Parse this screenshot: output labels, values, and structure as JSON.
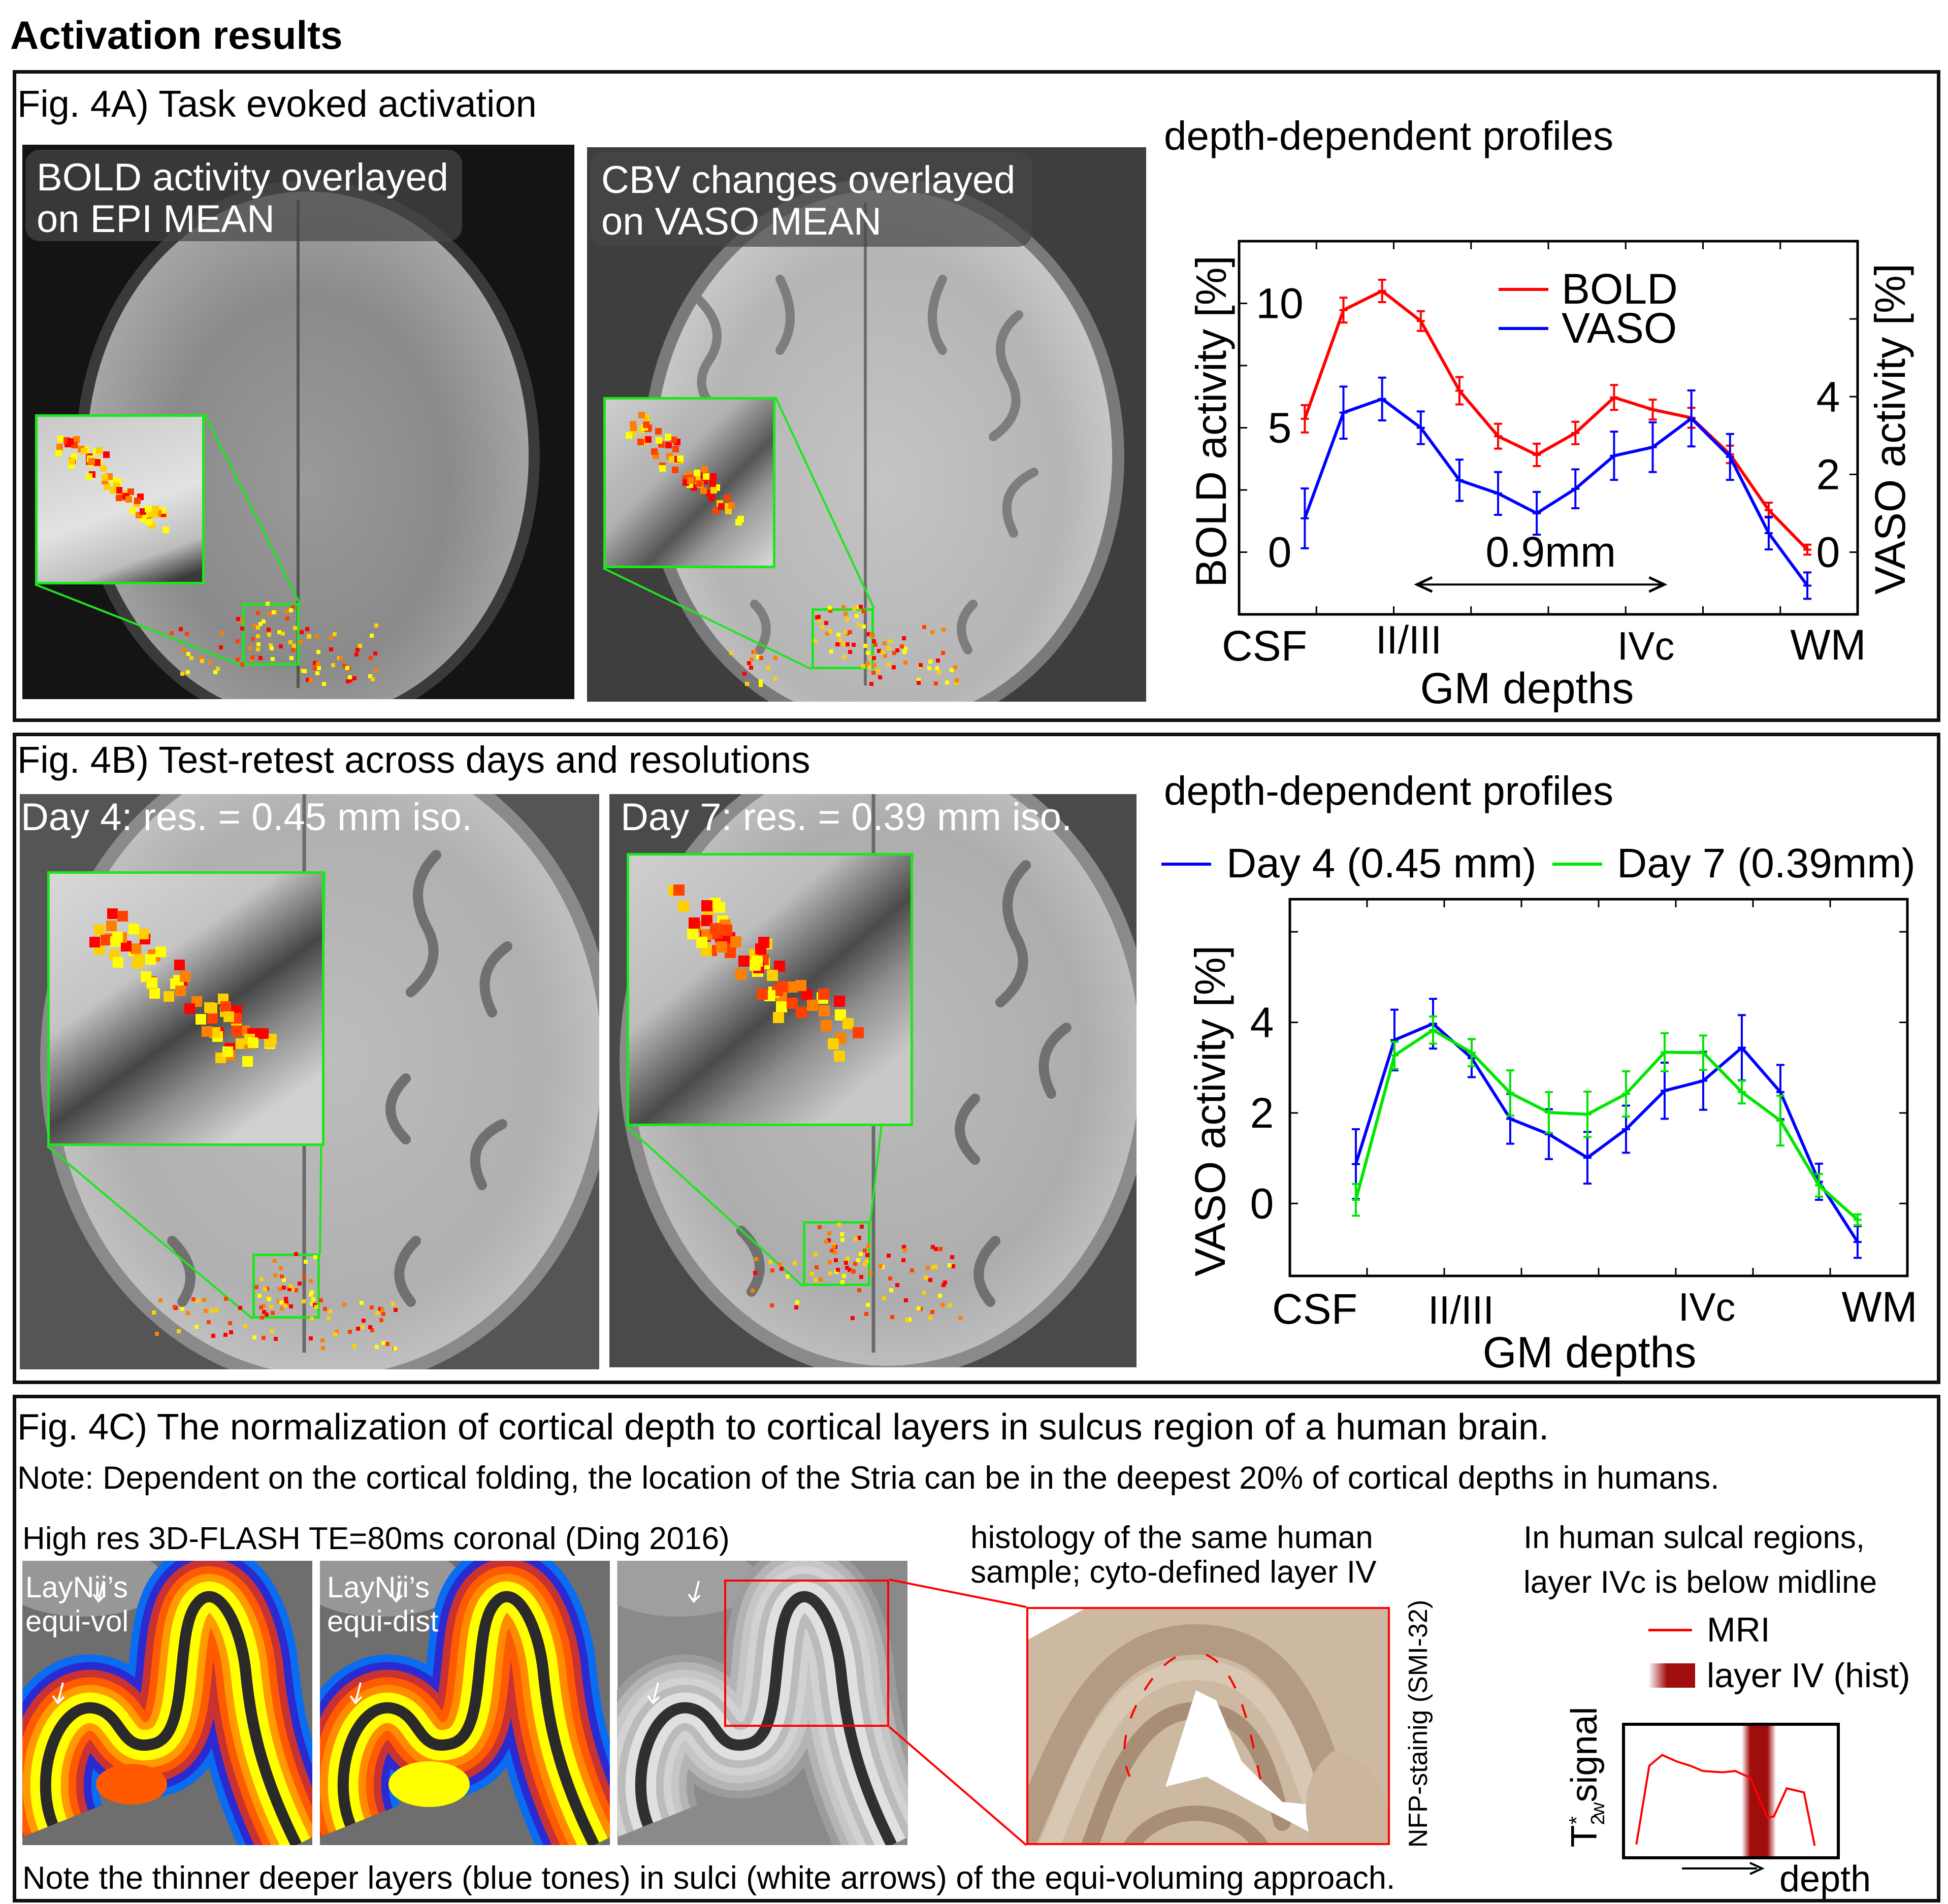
{
  "page_title": "Activation results",
  "panel_a": {
    "title": "Fig. 4A) Task evoked activation",
    "image_left_caption": [
      "BOLD activity overlayed",
      "on EPI MEAN"
    ],
    "image_right_caption": [
      "CBV changes overlayed",
      "on VASO MEAN"
    ],
    "profiles_title": "depth-dependent profiles"
  },
  "panel_b": {
    "title": "Fig. 4B) Test-retest across days and resolutions",
    "image_left_caption": "Day 4: res. = 0.45 mm iso.",
    "image_right_caption": "Day 7: res. = 0.39 mm iso.",
    "profiles_title": "depth-dependent profiles"
  },
  "panel_c": {
    "title": "Fig. 4C) The normalization of cortical depth to cortical layers in sulcus region of a human brain.",
    "note": "Note: Dependent on the cortical folding, the location of the Stria can be in the deepest 20% of cortical depths in humans.",
    "flash_caption": "High res 3D-FLASH TE=80ms coronal (Ding 2016)",
    "equi_vol_label": [
      "LayNii’s",
      "equi-vol"
    ],
    "equi_dist_label": [
      "LayNii’s",
      "equi-dist"
    ],
    "histology_caption": [
      "histology of the same human",
      "sample; cyto-defined layer IV"
    ],
    "staining_label": "NFP-stainig (SMI-32)",
    "sulcal_caption": [
      "In human sulcal regions,",
      "layer IVc is below midline"
    ],
    "bottom_note": "Note the thinner deeper layers (blue tones) in sulci (white arrows) of the equi-voluming approach."
  },
  "colors": {
    "bold": "#ff0000",
    "vaso": "#0000ff",
    "day4": "#0000ff",
    "day7": "#00e600",
    "zoom_box": "#1ee61e",
    "histology_box": "#ff0000",
    "layer_iv_band": "#a00d0d"
  },
  "chart_data": [
    {
      "type": "line",
      "title": "depth-dependent profiles",
      "xlabel": "GM depths",
      "x_tick_labels": [
        "CSF",
        "II/III",
        "IVc",
        "WM"
      ],
      "ylabel": "BOLD activity [%]",
      "y2label": "VASO activity [%]",
      "x": [
        1,
        2,
        3,
        4,
        5,
        6,
        7,
        8,
        9,
        10,
        11,
        12,
        13,
        14
      ],
      "xlim": [
        -0.7,
        15.3
      ],
      "xticks": [
        1.3,
        3.3,
        5.3,
        7.3,
        9.3,
        11.3,
        13.3
      ],
      "ylim": [
        -2.5,
        12.5
      ],
      "yticks": [
        0,
        2.5,
        5,
        7.5,
        10
      ],
      "ytick_labels": [
        "0",
        "5",
        "10"
      ],
      "ytick_label_values": [
        0,
        5,
        10
      ],
      "y2lim": [
        -1.6,
        8.0
      ],
      "y2ticks": [
        0,
        2,
        4,
        6
      ],
      "y2tick_labels": [
        "0",
        "2",
        "4"
      ],
      "y2tick_label_values": [
        0,
        2,
        4
      ],
      "legend": "top-center",
      "series": [
        {
          "name": "BOLD",
          "axis": "left",
          "color": "#ff0000",
          "values": [
            5.36,
            9.73,
            10.5,
            9.29,
            6.49,
            4.66,
            3.91,
            4.79,
            6.22,
            5.73,
            5.4,
            3.93,
            1.69,
            0.1
          ],
          "errors": [
            0.55,
            0.5,
            0.45,
            0.4,
            0.55,
            0.5,
            0.45,
            0.45,
            0.5,
            0.4,
            0.4,
            0.35,
            0.3,
            0.2
          ]
        },
        {
          "name": "VASO",
          "axis": "right",
          "color": "#0000ff",
          "values": [
            0.87,
            3.59,
            3.94,
            3.2,
            1.85,
            1.51,
            1.0,
            1.63,
            2.48,
            2.7,
            3.44,
            2.45,
            0.49,
            -0.86
          ],
          "errors": [
            0.77,
            0.67,
            0.55,
            0.42,
            0.53,
            0.55,
            0.55,
            0.5,
            0.62,
            0.64,
            0.72,
            0.59,
            0.42,
            0.34
          ]
        }
      ],
      "annotation": {
        "text": "0.9mm",
        "arrow_from": 3.9,
        "arrow_to": 10.3,
        "y": -1.3
      }
    },
    {
      "type": "line",
      "title": "depth-dependent profiles",
      "xlabel": "GM depths",
      "x_tick_labels": [
        "CSF",
        "II/III",
        "IVc",
        "WM"
      ],
      "ylabel": "VASO activity [%]",
      "x": [
        1,
        2,
        3,
        4,
        5,
        6,
        7,
        8,
        9,
        10,
        11,
        12,
        13,
        14
      ],
      "xlim": [
        -0.71,
        15.29
      ],
      "xticks": [
        1.29,
        3.29,
        5.29,
        7.29,
        9.29,
        11.29,
        13.29
      ],
      "ylim": [
        -1.6,
        6.72
      ],
      "yticks": [
        0,
        2,
        4,
        6
      ],
      "ytick_labels": [
        "0",
        "2",
        "4"
      ],
      "ytick_label_values": [
        0,
        2,
        4
      ],
      "legend": "top",
      "series": [
        {
          "name": "Day 4 (0.45 mm)",
          "color": "#0000ff",
          "values": [
            0.87,
            3.61,
            3.97,
            3.21,
            1.87,
            1.53,
            1.01,
            1.64,
            2.49,
            2.71,
            3.44,
            2.46,
            0.48,
            -0.85
          ],
          "errors": [
            0.77,
            0.67,
            0.55,
            0.42,
            0.55,
            0.55,
            0.57,
            0.52,
            0.62,
            0.64,
            0.72,
            0.6,
            0.4,
            0.35
          ]
        },
        {
          "name": "Day 7 (0.39mm)",
          "color": "#00e600",
          "values": [
            0.08,
            3.27,
            3.83,
            3.33,
            2.44,
            2.01,
            1.97,
            2.42,
            3.34,
            3.33,
            2.46,
            1.83,
            0.4,
            -0.36
          ],
          "errors": [
            0.35,
            0.3,
            0.3,
            0.3,
            0.5,
            0.45,
            0.5,
            0.5,
            0.42,
            0.38,
            0.25,
            0.55,
            0.25,
            0.12
          ]
        }
      ]
    },
    {
      "type": "line",
      "title": "",
      "xlabel": "depth",
      "ylabel": "T2*w signal",
      "ylabel_parts": {
        "base": "T",
        "sub": "2",
        "sup": "*",
        "sub2": "w",
        "rest": "signal"
      },
      "legend_entries": [
        "MRI",
        "layer IV (hist)"
      ],
      "series": [
        {
          "name": "MRI",
          "color": "#ff0000",
          "depth": [
            0.06,
            0.12,
            0.18,
            0.25,
            0.31,
            0.37,
            0.46,
            0.52,
            0.59,
            0.67,
            0.7,
            0.76,
            0.84,
            0.89
          ],
          "signal": [
            0.1,
            0.69,
            0.77,
            0.72,
            0.69,
            0.65,
            0.64,
            0.65,
            0.6,
            0.3,
            0.31,
            0.52,
            0.49,
            0.09
          ]
        }
      ],
      "band": {
        "name": "layer IV (hist)",
        "depth_center": 0.63,
        "depth_width": 0.16
      },
      "xlim": [
        0,
        1
      ],
      "ylim": [
        0,
        1
      ]
    }
  ]
}
